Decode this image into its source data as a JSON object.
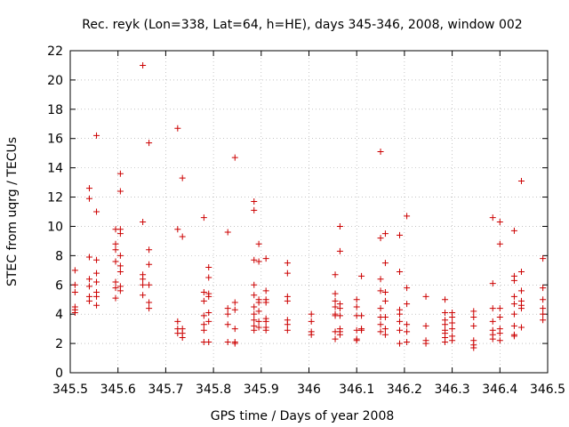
{
  "chart_data": {
    "type": "scatter",
    "title": "Rec. reyk (Lon=338, Lat=64, h=HE), days 345-346, 2008, window 002",
    "xlabel": "GPS time / Days of year 2008",
    "ylabel": "STEC from uqrg / TECUs",
    "xlim": [
      345.5,
      346.5
    ],
    "ylim": [
      0,
      22
    ],
    "x_ticks": [
      "345.5",
      "345.6",
      "345.7",
      "345.8",
      "345.9",
      "346",
      "346.1",
      "346.2",
      "346.3",
      "346.4",
      "346.5"
    ],
    "y_ticks": [
      "0",
      "2",
      "4",
      "6",
      "8",
      "10",
      "12",
      "14",
      "16",
      "18",
      "20",
      "22"
    ],
    "grid": true,
    "marker": "plus",
    "color": "#cc0000",
    "series": [
      {
        "points": [
          [
            345.51,
            7.0
          ],
          [
            345.51,
            6.0
          ],
          [
            345.51,
            5.5
          ],
          [
            345.51,
            4.5
          ],
          [
            345.51,
            4.3
          ],
          [
            345.51,
            4.1
          ],
          [
            345.54,
            12.6
          ],
          [
            345.54,
            11.9
          ],
          [
            345.54,
            7.9
          ],
          [
            345.54,
            6.4
          ],
          [
            345.54,
            5.9
          ],
          [
            345.54,
            5.2
          ],
          [
            345.54,
            4.9
          ],
          [
            345.555,
            16.2
          ],
          [
            345.555,
            11.0
          ],
          [
            345.555,
            7.7
          ],
          [
            345.555,
            6.8
          ],
          [
            345.555,
            6.2
          ],
          [
            345.555,
            5.5
          ],
          [
            345.555,
            5.2
          ],
          [
            345.555,
            4.6
          ],
          [
            345.595,
            9.8
          ],
          [
            345.595,
            8.8
          ],
          [
            345.595,
            8.4
          ],
          [
            345.595,
            7.6
          ],
          [
            345.595,
            6.2
          ],
          [
            345.595,
            5.8
          ],
          [
            345.595,
            5.1
          ],
          [
            345.605,
            13.6
          ],
          [
            345.605,
            12.4
          ],
          [
            345.605,
            9.8
          ],
          [
            345.605,
            9.5
          ],
          [
            345.605,
            8.0
          ],
          [
            345.605,
            7.3
          ],
          [
            345.605,
            6.9
          ],
          [
            345.605,
            5.9
          ],
          [
            345.605,
            5.6
          ],
          [
            345.652,
            21.0
          ],
          [
            345.652,
            10.3
          ],
          [
            345.652,
            6.7
          ],
          [
            345.652,
            6.4
          ],
          [
            345.652,
            6.0
          ],
          [
            345.652,
            5.3
          ],
          [
            345.665,
            15.7
          ],
          [
            345.665,
            8.4
          ],
          [
            345.665,
            7.4
          ],
          [
            345.665,
            6.0
          ],
          [
            345.665,
            4.8
          ],
          [
            345.665,
            4.4
          ],
          [
            345.725,
            16.7
          ],
          [
            345.725,
            9.8
          ],
          [
            345.725,
            3.5
          ],
          [
            345.725,
            3.0
          ],
          [
            345.725,
            2.7
          ],
          [
            345.735,
            13.3
          ],
          [
            345.735,
            9.3
          ],
          [
            345.735,
            3.0
          ],
          [
            345.735,
            2.7
          ],
          [
            345.735,
            2.4
          ],
          [
            345.78,
            10.6
          ],
          [
            345.78,
            5.5
          ],
          [
            345.78,
            4.9
          ],
          [
            345.78,
            3.9
          ],
          [
            345.78,
            3.3
          ],
          [
            345.78,
            2.9
          ],
          [
            345.78,
            2.1
          ],
          [
            345.79,
            7.2
          ],
          [
            345.79,
            6.5
          ],
          [
            345.79,
            5.4
          ],
          [
            345.79,
            5.2
          ],
          [
            345.79,
            4.1
          ],
          [
            345.79,
            3.5
          ],
          [
            345.79,
            2.1
          ],
          [
            345.83,
            9.6
          ],
          [
            345.83,
            4.4
          ],
          [
            345.83,
            4.0
          ],
          [
            345.83,
            3.3
          ],
          [
            345.83,
            2.1
          ],
          [
            345.845,
            14.7
          ],
          [
            345.845,
            4.8
          ],
          [
            345.845,
            4.3
          ],
          [
            345.845,
            3.0
          ],
          [
            345.845,
            2.1
          ],
          [
            345.845,
            2.0
          ],
          [
            345.885,
            11.7
          ],
          [
            345.885,
            11.1
          ],
          [
            345.885,
            7.7
          ],
          [
            345.885,
            6.0
          ],
          [
            345.885,
            5.3
          ],
          [
            345.885,
            4.5
          ],
          [
            345.885,
            4.0
          ],
          [
            345.885,
            3.6
          ],
          [
            345.885,
            3.2
          ],
          [
            345.885,
            2.9
          ],
          [
            345.895,
            8.8
          ],
          [
            345.895,
            7.6
          ],
          [
            345.895,
            5.0
          ],
          [
            345.895,
            4.8
          ],
          [
            345.895,
            4.2
          ],
          [
            345.895,
            3.5
          ],
          [
            345.895,
            3.1
          ],
          [
            345.91,
            7.8
          ],
          [
            345.91,
            5.6
          ],
          [
            345.91,
            5.0
          ],
          [
            345.91,
            4.8
          ],
          [
            345.91,
            3.7
          ],
          [
            345.91,
            3.5
          ],
          [
            345.91,
            3.1
          ],
          [
            345.91,
            2.9
          ],
          [
            345.955,
            7.5
          ],
          [
            345.955,
            6.8
          ],
          [
            345.955,
            5.2
          ],
          [
            345.955,
            4.9
          ],
          [
            345.955,
            3.6
          ],
          [
            345.955,
            3.3
          ],
          [
            345.955,
            2.9
          ],
          [
            346.005,
            4.0
          ],
          [
            346.005,
            3.5
          ],
          [
            346.005,
            2.8
          ],
          [
            346.005,
            2.6
          ],
          [
            346.055,
            6.7
          ],
          [
            346.055,
            5.4
          ],
          [
            346.055,
            4.9
          ],
          [
            346.055,
            4.5
          ],
          [
            346.055,
            4.0
          ],
          [
            346.055,
            3.9
          ],
          [
            346.055,
            2.8
          ],
          [
            346.055,
            2.3
          ],
          [
            346.065,
            10.0
          ],
          [
            346.065,
            8.3
          ],
          [
            346.065,
            4.7
          ],
          [
            346.065,
            4.4
          ],
          [
            346.065,
            3.9
          ],
          [
            346.065,
            3.0
          ],
          [
            346.065,
            2.8
          ],
          [
            346.065,
            2.6
          ],
          [
            346.1,
            5.0
          ],
          [
            346.1,
            4.5
          ],
          [
            346.1,
            3.9
          ],
          [
            346.1,
            2.9
          ],
          [
            346.1,
            2.3
          ],
          [
            346.1,
            2.2
          ],
          [
            346.11,
            6.6
          ],
          [
            346.11,
            3.9
          ],
          [
            346.11,
            3.0
          ],
          [
            346.11,
            2.9
          ],
          [
            346.15,
            15.1
          ],
          [
            346.15,
            9.2
          ],
          [
            346.15,
            6.4
          ],
          [
            346.15,
            5.6
          ],
          [
            346.15,
            4.4
          ],
          [
            346.15,
            3.8
          ],
          [
            346.15,
            3.3
          ],
          [
            346.15,
            2.8
          ],
          [
            346.16,
            9.5
          ],
          [
            346.16,
            7.5
          ],
          [
            346.16,
            5.5
          ],
          [
            346.16,
            4.9
          ],
          [
            346.16,
            3.8
          ],
          [
            346.16,
            3.0
          ],
          [
            346.16,
            2.6
          ],
          [
            346.19,
            9.4
          ],
          [
            346.19,
            6.9
          ],
          [
            346.19,
            4.3
          ],
          [
            346.19,
            4.0
          ],
          [
            346.19,
            3.5
          ],
          [
            346.19,
            2.9
          ],
          [
            346.19,
            2.0
          ],
          [
            346.205,
            10.7
          ],
          [
            346.205,
            5.8
          ],
          [
            346.205,
            4.7
          ],
          [
            346.205,
            3.3
          ],
          [
            346.205,
            2.8
          ],
          [
            346.205,
            2.1
          ],
          [
            346.245,
            5.2
          ],
          [
            346.245,
            3.2
          ],
          [
            346.245,
            2.2
          ],
          [
            346.245,
            2.0
          ],
          [
            346.285,
            5.0
          ],
          [
            346.285,
            4.1
          ],
          [
            346.285,
            3.6
          ],
          [
            346.285,
            3.3
          ],
          [
            346.285,
            2.9
          ],
          [
            346.285,
            2.7
          ],
          [
            346.285,
            2.4
          ],
          [
            346.285,
            2.1
          ],
          [
            346.3,
            4.1
          ],
          [
            346.3,
            3.8
          ],
          [
            346.3,
            3.4
          ],
          [
            346.3,
            3.0
          ],
          [
            346.3,
            2.5
          ],
          [
            346.3,
            2.2
          ],
          [
            346.345,
            4.2
          ],
          [
            346.345,
            3.8
          ],
          [
            346.345,
            3.2
          ],
          [
            346.345,
            2.2
          ],
          [
            346.345,
            1.9
          ],
          [
            346.345,
            1.7
          ],
          [
            346.385,
            10.6
          ],
          [
            346.385,
            6.1
          ],
          [
            346.385,
            4.4
          ],
          [
            346.385,
            3.5
          ],
          [
            346.385,
            2.9
          ],
          [
            346.385,
            2.6
          ],
          [
            346.385,
            2.3
          ],
          [
            346.4,
            10.3
          ],
          [
            346.4,
            8.8
          ],
          [
            346.4,
            4.4
          ],
          [
            346.4,
            3.8
          ],
          [
            346.4,
            3.0
          ],
          [
            346.4,
            2.7
          ],
          [
            346.4,
            2.2
          ],
          [
            346.43,
            9.7
          ],
          [
            346.43,
            6.6
          ],
          [
            346.43,
            6.3
          ],
          [
            346.43,
            5.2
          ],
          [
            346.43,
            4.7
          ],
          [
            346.43,
            4.0
          ],
          [
            346.43,
            3.2
          ],
          [
            346.43,
            2.6
          ],
          [
            346.43,
            2.5
          ],
          [
            346.445,
            13.1
          ],
          [
            346.445,
            6.9
          ],
          [
            346.445,
            5.6
          ],
          [
            346.445,
            4.9
          ],
          [
            346.445,
            4.6
          ],
          [
            346.445,
            4.4
          ],
          [
            346.445,
            3.1
          ],
          [
            346.49,
            7.8
          ],
          [
            346.49,
            5.8
          ],
          [
            346.49,
            5.0
          ],
          [
            346.49,
            4.4
          ],
          [
            346.49,
            4.0
          ],
          [
            346.49,
            3.6
          ]
        ]
      }
    ]
  }
}
